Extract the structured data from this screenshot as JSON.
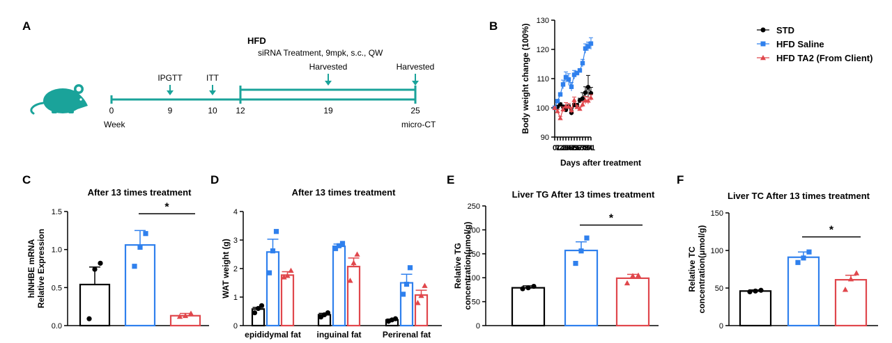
{
  "colors": {
    "std": "#000000",
    "saline": "#2f80ed",
    "ta2": "#e0474c",
    "timeline": "#1aa39a",
    "mouse": "#1aa39a"
  },
  "panel_labels": [
    "A",
    "B",
    "C",
    "D",
    "E",
    "F"
  ],
  "timeline": {
    "diet": "HFD",
    "treatment": "siRNA Treatment, 9mpk, s.c., QW",
    "week_label": "Week",
    "end_label": "micro-CT",
    "ticks": [
      "0",
      "9",
      "10",
      "12",
      "19",
      "25"
    ],
    "events": [
      {
        "label": "IPGTT",
        "week": "9"
      },
      {
        "label": "ITT",
        "week": "10"
      },
      {
        "label": "Harvested",
        "week": "19"
      },
      {
        "label": "Harvested",
        "week": "25"
      }
    ]
  },
  "chart_data": [
    {
      "id": "B",
      "type": "line",
      "xlabel": "Days after treatment",
      "ylabel": "Body weight change (100%)",
      "x": [
        0,
        7,
        14,
        21,
        28,
        35,
        42,
        49,
        56,
        63,
        70,
        77,
        84,
        91
      ],
      "xlim": [
        0,
        91
      ],
      "ylim": [
        90,
        130
      ],
      "yticks": [
        90,
        100,
        110,
        120,
        130
      ],
      "legend_position": "top-right",
      "series": [
        {
          "name": "STD",
          "marker": "circle",
          "values": [
            100,
            100.3,
            101.2,
            100.4,
            99.3,
            100.5,
            98.3,
            101,
            100.9,
            102.5,
            103.2,
            105.2,
            107.1,
            105
          ],
          "err": [
            0.3,
            0.4,
            0.5,
            0.5,
            0.6,
            0.5,
            0.8,
            0.5,
            0.5,
            0.8,
            2,
            2,
            4,
            2
          ]
        },
        {
          "name": "HFD Saline",
          "marker": "square",
          "values": [
            100,
            102.3,
            104.6,
            108,
            110.5,
            109.7,
            107.2,
            111.3,
            111.9,
            112.8,
            115.3,
            120.3,
            121,
            122
          ],
          "err": [
            0.3,
            0.5,
            0.6,
            1.5,
            1.8,
            2,
            1.5,
            1.5,
            0.6,
            0.6,
            1.3,
            1.6,
            1.5,
            2
          ]
        },
        {
          "name": "HFD TA2 (From Client)",
          "marker": "triangle",
          "values": [
            100,
            98.9,
            96.5,
            99.5,
            100.6,
            100.5,
            99.2,
            102.7,
            100.3,
            99.7,
            101.2,
            102.6,
            102.5,
            103.5
          ],
          "err": [
            0.3,
            0.5,
            0.6,
            0.8,
            1.2,
            1,
            1,
            1,
            0.6,
            0.6,
            1,
            1.3,
            1.2,
            1
          ]
        }
      ]
    },
    {
      "id": "C",
      "type": "bar",
      "title": "After 13 times treatment",
      "ylabel": "hINHBE mRNA\nRelative Expression",
      "ylim": [
        0,
        1.5
      ],
      "yticks": [
        "0.0",
        "0.5",
        "1.0",
        "1.5"
      ],
      "groups": [
        "STD",
        "HFD Saline",
        "HFD TA2 (From Client)"
      ],
      "values": [
        0.54,
        1.06,
        0.13
      ],
      "err": [
        0.23,
        0.19,
        0.03
      ],
      "points": [
        [
          0.09,
          0.74,
          0.82
        ],
        [
          0.78,
          1.03,
          1.21
        ],
        [
          0.12,
          0.13,
          0.16
        ]
      ],
      "significance": {
        "from": 1,
        "to": 2,
        "label": "*",
        "y": 1.47
      }
    },
    {
      "id": "D",
      "type": "bar",
      "title": "After 13 times treatment",
      "ylabel": "WAT weight (g)",
      "ylim": [
        0,
        4
      ],
      "yticks": [
        "0",
        "1",
        "2",
        "3",
        "4"
      ],
      "categories": [
        "epididymal fat",
        "inguinal fat",
        "Perirenal fat"
      ],
      "series": [
        {
          "name": "STD",
          "values": [
            0.58,
            0.38,
            0.2
          ],
          "err": [
            0.06,
            0.05,
            0.03
          ],
          "points": [
            [
              0.45,
              0.6,
              0.7
            ],
            [
              0.3,
              0.38,
              0.45
            ],
            [
              0.15,
              0.2,
              0.24
            ]
          ]
        },
        {
          "name": "HFD Saline",
          "values": [
            2.58,
            2.78,
            1.5
          ],
          "err": [
            0.45,
            0.08,
            0.3
          ],
          "points": [
            [
              1.85,
              2.62,
              3.3
            ],
            [
              2.7,
              2.8,
              2.88
            ],
            [
              1.1,
              1.45,
              2.03
            ]
          ]
        },
        {
          "name": "HFD TA2 (From Client)",
          "values": [
            1.77,
            2.07,
            1.07
          ],
          "err": [
            0.12,
            0.3,
            0.17
          ],
          "points": [
            [
              1.7,
              1.75,
              1.93
            ],
            [
              1.58,
              2.2,
              2.5
            ],
            [
              0.8,
              1.05,
              1.4
            ]
          ]
        }
      ]
    },
    {
      "id": "E",
      "type": "bar",
      "title": "Liver TG After 13 times treatment",
      "ylabel": "Relative TG\nconcentration(μmol/g)",
      "ylim": [
        0,
        250
      ],
      "yticks": [
        "0",
        "50",
        "100",
        "150",
        "200",
        "250"
      ],
      "groups": [
        "STD",
        "HFD Saline",
        "HFD TA2 (From Client)"
      ],
      "values": [
        79,
        157,
        99
      ],
      "err": [
        4,
        18,
        8
      ],
      "points": [
        [
          77,
          79,
          82
        ],
        [
          130,
          156,
          183
        ],
        [
          89,
          104,
          105
        ]
      ],
      "significance": {
        "from": 1,
        "to": 2,
        "label": "*",
        "y": 210
      }
    },
    {
      "id": "F",
      "type": "bar",
      "title": "Liver TC After 13 times treatment",
      "ylabel": "Relative TC\nconcentration(μmol/g)",
      "ylim": [
        0,
        150
      ],
      "yticks": [
        "0",
        "50",
        "100",
        "150"
      ],
      "groups": [
        "STD",
        "HFD Saline",
        "HFD TA2 (From Client)"
      ],
      "values": [
        46,
        91,
        61
      ],
      "err": [
        1.5,
        7,
        6
      ],
      "points": [
        [
          45,
          46,
          47
        ],
        [
          84,
          90,
          98
        ],
        [
          48,
          62,
          70
        ]
      ],
      "significance": {
        "from": 1,
        "to": 2,
        "label": "*",
        "y": 118
      }
    }
  ]
}
